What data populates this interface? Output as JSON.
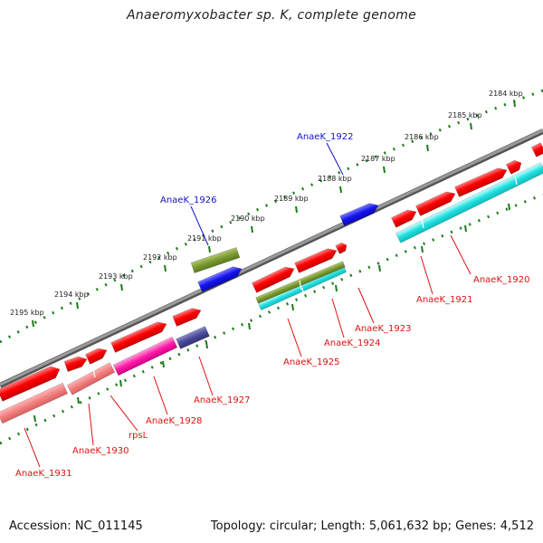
{
  "title": "Anaeromyxobacter sp. K, complete genome",
  "footer": {
    "accession": "Accession: NC_011145",
    "summary": "Topology: circular; Length: 5,061,632 bp; Genes: 4,512"
  },
  "colors": {
    "backbone": "#7b7b7b",
    "tick": "#1b7d1b",
    "gene_label": "#dd1111",
    "highlight_label": "#1111cc"
  },
  "kbp_labels": [
    {
      "id": "kbp-2184",
      "text": "2184 kbp"
    },
    {
      "id": "kbp-2185",
      "text": "2185 kbp"
    },
    {
      "id": "kbp-2186",
      "text": "2186 kbp"
    },
    {
      "id": "kbp-2187",
      "text": "2187 kbp"
    },
    {
      "id": "kbp-2188",
      "text": "2188 kbp"
    },
    {
      "id": "kbp-2189",
      "text": "2189 kbp"
    },
    {
      "id": "kbp-2190",
      "text": "2190 kbp"
    },
    {
      "id": "kbp-2191",
      "text": "2191 kbp"
    },
    {
      "id": "kbp-2192",
      "text": "2192 kbp"
    },
    {
      "id": "kbp-2193",
      "text": "2193 kbp"
    },
    {
      "id": "kbp-2194",
      "text": "2194 kbp"
    },
    {
      "id": "kbp-2195",
      "text": "2195 kbp"
    }
  ],
  "gene_labels": [
    {
      "id": "AnaeK_1922",
      "text": "AnaeK_1922",
      "highlight": true
    },
    {
      "id": "AnaeK_1926",
      "text": "AnaeK_1926",
      "highlight": true
    },
    {
      "id": "AnaeK_1920",
      "text": "AnaeK_1920",
      "highlight": false
    },
    {
      "id": "AnaeK_1921",
      "text": "AnaeK_1921",
      "highlight": false
    },
    {
      "id": "AnaeK_1923",
      "text": "AnaeK_1923",
      "highlight": false
    },
    {
      "id": "AnaeK_1924",
      "text": "AnaeK_1924",
      "highlight": false
    },
    {
      "id": "AnaeK_1925",
      "text": "AnaeK_1925",
      "highlight": false
    },
    {
      "id": "AnaeK_1927",
      "text": "AnaeK_1927",
      "highlight": false
    },
    {
      "id": "AnaeK_1928",
      "text": "AnaeK_1928",
      "highlight": false
    },
    {
      "id": "rpsL",
      "text": "rpsL",
      "highlight": false
    },
    {
      "id": "AnaeK_1930",
      "text": "AnaeK_1930",
      "highlight": false
    },
    {
      "id": "AnaeK_1931",
      "text": "AnaeK_1931",
      "highlight": false
    }
  ]
}
